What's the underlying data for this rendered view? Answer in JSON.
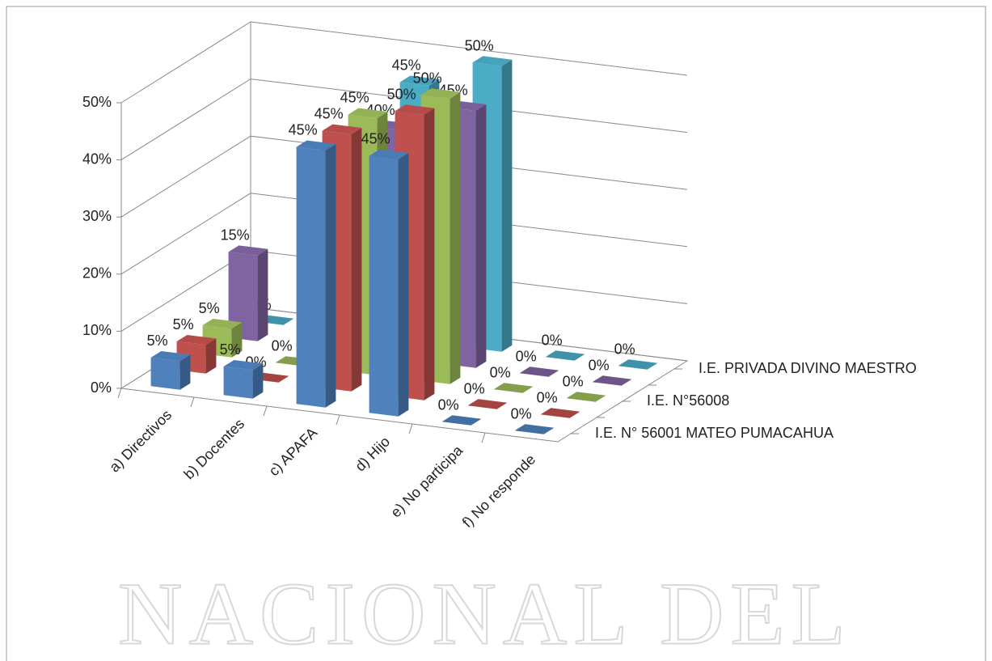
{
  "watermark": "NACIONAL DEL",
  "chart_data": {
    "type": "bar3d",
    "categories": [
      "a)    Directivos",
      "b)    Docentes",
      "c)    APAFA",
      "d)    Hijo",
      "e)    No participa",
      "f)    No responde"
    ],
    "series": [
      {
        "name": "I.E. N° 56001 MATEO PUMACAHUA",
        "color": "#4f81bd",
        "values": [
          5,
          5,
          45,
          45,
          0,
          0
        ],
        "value_labels": [
          "5%",
          "5%",
          "45%",
          "45%",
          "0%",
          "0%"
        ]
      },
      {
        "name": null,
        "color": "#c0504d",
        "values": [
          5,
          0,
          45,
          50,
          0,
          0
        ],
        "value_labels": [
          "5%",
          "0%",
          "45%",
          "50%",
          "0%",
          "0%"
        ]
      },
      {
        "name": "I.E. N°56008",
        "color": "#9bbb59",
        "values": [
          5,
          0,
          45,
          50,
          0,
          0
        ],
        "value_labels": [
          "5%",
          "0%",
          "45%",
          "50%",
          "0%",
          "0%"
        ]
      },
      {
        "name": null,
        "color": "#8064a2",
        "values": [
          15,
          0,
          40,
          45,
          0,
          0
        ],
        "value_labels": [
          "15%",
          "0%",
          "40%",
          "45%",
          "0%",
          "0%"
        ]
      },
      {
        "name": "I.E. PRIVADA DIVINO MAESTRO",
        "color": "#4bacc6",
        "values": [
          0,
          5,
          45,
          50,
          0,
          0
        ],
        "value_labels": [
          "0%",
          "5%",
          "45%",
          "50%",
          "0%",
          "0%"
        ]
      }
    ],
    "ylim": [
      0,
      50
    ],
    "yticks": [
      {
        "value": 0,
        "label": "0%"
      },
      {
        "value": 10,
        "label": "10%"
      },
      {
        "value": 20,
        "label": "20%"
      },
      {
        "value": 30,
        "label": "30%"
      },
      {
        "value": 40,
        "label": "40%"
      },
      {
        "value": 50,
        "label": "50%"
      }
    ],
    "grid": true
  }
}
